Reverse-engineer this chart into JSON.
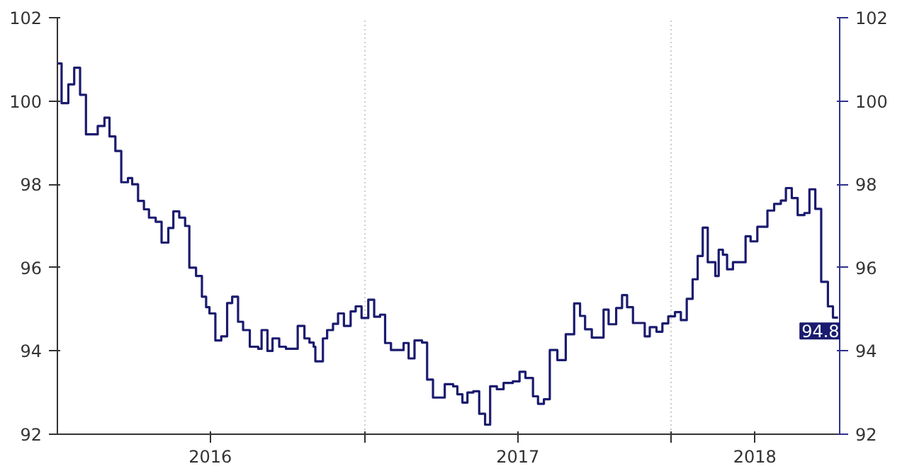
{
  "chart_data": {
    "type": "step",
    "x": [
      "2016-01-01",
      "2016-01-06",
      "2016-01-14",
      "2016-01-21",
      "2016-01-28",
      "2016-02-04",
      "2016-02-18",
      "2016-02-26",
      "2016-03-03",
      "2016-03-10",
      "2016-03-17",
      "2016-03-25",
      "2016-03-30",
      "2016-04-06",
      "2016-04-13",
      "2016-04-19",
      "2016-04-27",
      "2016-05-04",
      "2016-05-12",
      "2016-05-18",
      "2016-05-25",
      "2016-06-01",
      "2016-06-06",
      "2016-06-14",
      "2016-06-21",
      "2016-06-26",
      "2016-06-30",
      "2016-07-07",
      "2016-07-14",
      "2016-07-21",
      "2016-07-27",
      "2016-08-03",
      "2016-08-09",
      "2016-08-17",
      "2016-08-27",
      "2016-08-31",
      "2016-09-07",
      "2016-09-13",
      "2016-09-21",
      "2016-09-29",
      "2016-10-13",
      "2016-10-21",
      "2016-10-27",
      "2016-11-01",
      "2016-11-03",
      "2016-11-12",
      "2016-11-17",
      "2016-11-24",
      "2016-11-30",
      "2016-12-07",
      "2016-12-15",
      "2016-12-21",
      "2016-12-28",
      "2017-01-05",
      "2017-01-12",
      "2017-01-19",
      "2017-01-25",
      "2017-02-01",
      "2017-02-16",
      "2017-02-22",
      "2017-03-01",
      "2017-03-10",
      "2017-03-16",
      "2017-03-23",
      "2017-04-06",
      "2017-04-16",
      "2017-04-21",
      "2017-04-27",
      "2017-05-03",
      "2017-05-10",
      "2017-05-17",
      "2017-05-24",
      "2017-05-30",
      "2017-06-07",
      "2017-06-15",
      "2017-06-26",
      "2017-07-04",
      "2017-07-11",
      "2017-07-20",
      "2017-07-26",
      "2017-08-02",
      "2017-08-09",
      "2017-08-18",
      "2017-08-28",
      "2017-09-07",
      "2017-09-14",
      "2017-09-20",
      "2017-09-28",
      "2017-10-12",
      "2017-10-18",
      "2017-10-27",
      "2017-11-03",
      "2017-11-09",
      "2017-11-16",
      "2017-11-30",
      "2017-12-06",
      "2017-12-14",
      "2017-12-21",
      "2017-12-28",
      "2018-01-05",
      "2018-01-12",
      "2018-01-19",
      "2018-01-26",
      "2018-02-01",
      "2018-02-07",
      "2018-02-13",
      "2018-02-22",
      "2018-02-26",
      "2018-03-03",
      "2018-03-08",
      "2018-03-15",
      "2018-03-30",
      "2018-04-05",
      "2018-04-13",
      "2018-04-25",
      "2018-05-03",
      "2018-05-11",
      "2018-05-17",
      "2018-05-24",
      "2018-05-31",
      "2018-06-08",
      "2018-06-14",
      "2018-06-21",
      "2018-06-28",
      "2018-07-06",
      "2018-07-12",
      "2018-07-18"
    ],
    "series": [
      {
        "color": "#1b1b6f",
        "values": [
          100.9,
          99.95,
          100.4,
          100.8,
          100.15,
          99.2,
          99.4,
          99.6,
          99.15,
          98.8,
          98.05,
          98.15,
          98.0,
          97.6,
          97.4,
          97.2,
          97.1,
          96.6,
          96.95,
          97.35,
          97.2,
          97.0,
          96.0,
          95.8,
          95.3,
          95.05,
          94.9,
          94.25,
          94.35,
          95.15,
          95.3,
          94.7,
          94.5,
          94.1,
          94.05,
          94.5,
          94.0,
          94.3,
          94.1,
          94.05,
          94.6,
          94.3,
          94.2,
          94.1,
          93.75,
          94.3,
          94.5,
          94.65,
          94.9,
          94.6,
          94.95,
          95.07,
          94.79,
          95.23,
          94.82,
          94.87,
          94.19,
          94.02,
          94.19,
          93.82,
          94.25,
          94.2,
          93.31,
          92.88,
          93.2,
          93.15,
          92.96,
          92.76,
          93.0,
          93.03,
          92.49,
          92.23,
          93.15,
          93.08,
          93.23,
          93.27,
          93.5,
          93.35,
          92.91,
          92.73,
          92.84,
          94.02,
          93.78,
          94.4,
          95.14,
          94.84,
          94.52,
          94.32,
          94.99,
          94.64,
          95.03,
          95.34,
          95.05,
          94.67,
          94.35,
          94.57,
          94.46,
          94.66,
          94.83,
          94.93,
          94.74,
          95.25,
          95.72,
          96.28,
          96.96,
          96.13,
          95.8,
          96.43,
          96.31,
          95.96,
          96.13,
          96.75,
          96.63,
          96.98,
          97.37,
          97.53,
          97.61,
          97.91,
          97.67,
          97.26,
          97.31,
          97.88,
          97.41,
          95.66,
          95.07,
          94.8,
          94.8
        ]
      }
    ],
    "xlim": [
      "2016-01-01",
      "2018-07-20"
    ],
    "xticks": [
      {
        "value": "2016-07-01",
        "label": "2016"
      },
      {
        "value": "2017-01-01",
        "label": null
      },
      {
        "value": "2017-07-02",
        "label": "2017"
      },
      {
        "value": "2018-01-01",
        "label": null
      },
      {
        "value": "2018-04-10",
        "label": "2018"
      }
    ],
    "ylim": [
      92,
      102
    ],
    "yticks": [
      92,
      94,
      96,
      98,
      100,
      102
    ],
    "y2lim": [
      92,
      102
    ],
    "y2ticks": [
      92,
      94,
      96,
      98,
      100,
      102
    ],
    "grid": "x",
    "annotations": [
      {
        "text": "94.8",
        "x": "2018-07-18",
        "y": 94.8
      }
    ]
  }
}
